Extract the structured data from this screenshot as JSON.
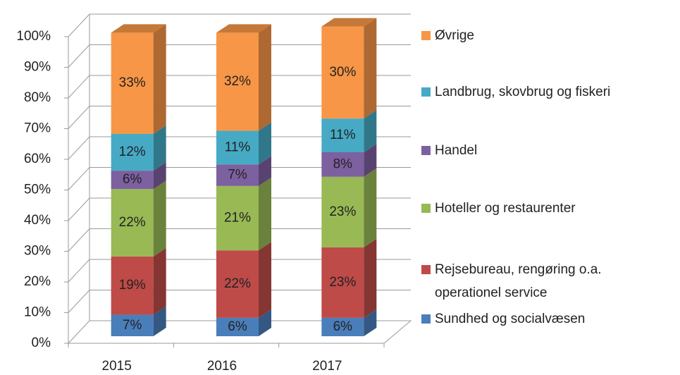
{
  "chart_data": {
    "type": "bar3d_stacked",
    "categories": [
      "2015",
      "2016",
      "2017"
    ],
    "ylim": [
      0,
      100
    ],
    "yticks": [
      {
        "value": 0,
        "label": "0%"
      },
      {
        "value": 10,
        "label": "10%"
      },
      {
        "value": 20,
        "label": "20%"
      },
      {
        "value": 30,
        "label": "30%"
      },
      {
        "value": 40,
        "label": "40%"
      },
      {
        "value": 50,
        "label": "50%"
      },
      {
        "value": 60,
        "label": "60%"
      },
      {
        "value": 70,
        "label": "70%"
      },
      {
        "value": 80,
        "label": "80%"
      },
      {
        "value": 90,
        "label": "90%"
      },
      {
        "value": 100,
        "label": "100%"
      }
    ],
    "grid": true,
    "legend": "right",
    "series": [
      {
        "name": "Sundhed og socialvæsen",
        "color": "#4a7ebb",
        "values": [
          7,
          6,
          6
        ],
        "value_labels": [
          "7%",
          "6%",
          "6%"
        ]
      },
      {
        "name": "Rejsebureau, rengøring o.a. operationel service",
        "color": "#be4b48",
        "values": [
          19,
          22,
          23
        ],
        "value_labels": [
          "19%",
          "22%",
          "23%"
        ]
      },
      {
        "name": "Hoteller og restaurenter",
        "color": "#98b954",
        "values": [
          22,
          21,
          23
        ],
        "value_labels": [
          "22%",
          "21%",
          "23%"
        ]
      },
      {
        "name": "Handel",
        "color": "#7d60a0",
        "values": [
          6,
          7,
          8
        ],
        "value_labels": [
          "6%",
          "7%",
          "8%"
        ]
      },
      {
        "name": "Landbrug, skovbrug og fiskeri",
        "color": "#46aac5",
        "values": [
          12,
          11,
          11
        ],
        "value_labels": [
          "12%",
          "11%",
          "11%"
        ]
      },
      {
        "name": "Øvrige",
        "color": "#f79646",
        "values": [
          33,
          32,
          30
        ],
        "value_labels": [
          "33%",
          "32%",
          "30%"
        ]
      }
    ]
  }
}
